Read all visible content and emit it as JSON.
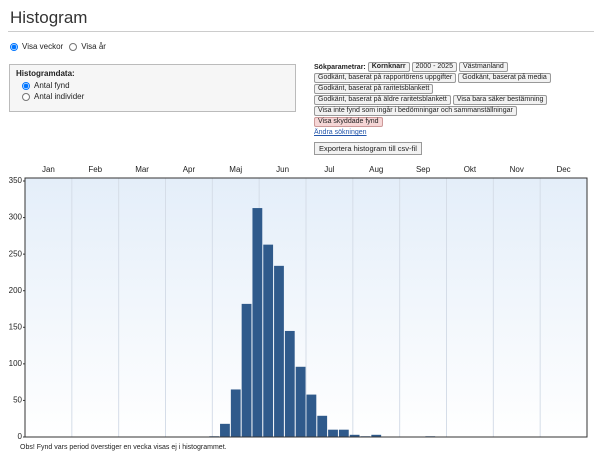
{
  "header": {
    "title": "Histogram"
  },
  "view_options": [
    {
      "label": "Visa veckor",
      "checked": true
    },
    {
      "label": "Visa år",
      "checked": false
    }
  ],
  "histogram_data": {
    "title": "Histogramdata:",
    "options": [
      {
        "label": "Antal fynd",
        "checked": true
      },
      {
        "label": "Antal individer",
        "checked": false
      }
    ]
  },
  "search": {
    "label": "Sökparametrar:",
    "tag_rows": [
      [
        {
          "text": "Kornknarr",
          "bold": true
        },
        {
          "text": "2000 - 2025"
        },
        {
          "text": "Västmanland"
        }
      ],
      [
        {
          "text": "Godkänt, baserat på rapportörens uppgifter"
        },
        {
          "text": "Godkänt, baserat på media"
        }
      ],
      [
        {
          "text": "Godkänt, baserat på raritetsblankett"
        }
      ],
      [
        {
          "text": "Godkänt, baserat på äldre raritetsblankett"
        },
        {
          "text": "Visa bara säker bestämning"
        }
      ],
      [
        {
          "text": "Visa inte fynd som ingår i bedömningar och sammanställningar"
        }
      ],
      [
        {
          "text": "Visa skyddade fynd",
          "highlight": true
        }
      ]
    ],
    "link": "Ändra sökningen",
    "export_button": "Exportera histogram till csv-fil"
  },
  "chart_data": {
    "type": "bar",
    "months": [
      "Jan",
      "Feb",
      "Mar",
      "Apr",
      "Maj",
      "Jun",
      "Jul",
      "Aug",
      "Sep",
      "Okt",
      "Nov",
      "Dec"
    ],
    "values": [
      0,
      0,
      0,
      0,
      0,
      0,
      0,
      0,
      0,
      0,
      0,
      0,
      0,
      0,
      0,
      0,
      0,
      1,
      18,
      65,
      182,
      313,
      263,
      234,
      145,
      96,
      58,
      29,
      10,
      10,
      3,
      1,
      3,
      0,
      0,
      0,
      0,
      1,
      0,
      0,
      0,
      0,
      0,
      0,
      0,
      0,
      0,
      0,
      0,
      0,
      0,
      0
    ],
    "color": "#2f5a8b",
    "ylim": [
      0,
      350
    ],
    "yticks": [
      0,
      50,
      100,
      150,
      200,
      250,
      300,
      350
    ]
  },
  "note": "Obs! Fynd vars period överstiger en vecka visas ej i histogrammet."
}
